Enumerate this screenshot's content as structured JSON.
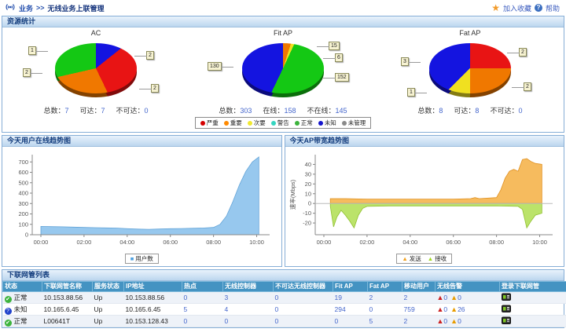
{
  "header": {
    "breadcrumb": {
      "section": "业务",
      "separator": ">>",
      "page": "无线业务上联管理"
    },
    "favorite_label": "加入收藏",
    "help_label": "帮助"
  },
  "resource_panel": {
    "title": "资源统计",
    "legend": [
      {
        "label": "严重",
        "color": "#d40000"
      },
      {
        "label": "重要",
        "color": "#ff8a00"
      },
      {
        "label": "次要",
        "color": "#f0e830"
      },
      {
        "label": "警告",
        "color": "#35d5c0"
      },
      {
        "label": "正常",
        "color": "#3cb33c"
      },
      {
        "label": "未知",
        "color": "#1414cc"
      },
      {
        "label": "未管理",
        "color": "#8a8a8a"
      }
    ]
  },
  "chart_data": [
    {
      "type": "pie",
      "title": "AC",
      "slices": [
        {
          "label": "1",
          "value": 1,
          "color": "#1414e0"
        },
        {
          "label": "2",
          "value": 2,
          "color": "#e81414"
        },
        {
          "label": "2",
          "value": 2,
          "color": "#f07800"
        },
        {
          "label": "2",
          "value": 2,
          "color": "#14c814"
        }
      ],
      "stats": [
        {
          "label": "总数",
          "value": "7"
        },
        {
          "label": "可达",
          "value": "7"
        },
        {
          "label": "不可达",
          "value": "0"
        }
      ]
    },
    {
      "type": "pie",
      "title": "Fit AP",
      "slices": [
        {
          "label": "15",
          "value": 15,
          "color": "#f07800"
        },
        {
          "label": "6",
          "value": 6,
          "color": "#f0e020"
        },
        {
          "label": "152",
          "value": 152,
          "color": "#14c814"
        },
        {
          "label": "130",
          "value": 130,
          "color": "#1414e0"
        }
      ],
      "stats": [
        {
          "label": "总数",
          "value": "303"
        },
        {
          "label": "在线",
          "value": "158"
        },
        {
          "label": "不在线",
          "value": "145"
        }
      ]
    },
    {
      "type": "pie",
      "title": "Fat AP",
      "slices": [
        {
          "label": "2",
          "value": 2,
          "color": "#e81414"
        },
        {
          "label": "2",
          "value": 2,
          "color": "#f07800"
        },
        {
          "label": "1",
          "value": 1,
          "color": "#f0e020"
        },
        {
          "label": "3",
          "value": 3,
          "color": "#1414e0"
        }
      ],
      "stats": [
        {
          "label": "总数",
          "value": "8"
        },
        {
          "label": "可达",
          "value": "8"
        },
        {
          "label": "不可达",
          "value": "0"
        }
      ]
    },
    {
      "type": "area",
      "title": "今天用户在线趋势图",
      "xlim": [
        -0.4,
        10.6
      ],
      "ylim": [
        0,
        770
      ],
      "yticks": [
        0,
        100,
        200,
        300,
        400,
        500,
        600,
        700
      ],
      "xticks": [
        {
          "v": 0,
          "label": "00:00"
        },
        {
          "v": 2,
          "label": "02:00"
        },
        {
          "v": 4,
          "label": "04:00"
        },
        {
          "v": 6,
          "label": "06:00"
        },
        {
          "v": 8,
          "label": "08:00"
        },
        {
          "v": 10,
          "label": "10:00"
        }
      ],
      "legend": [
        {
          "label": "用户数",
          "color": "#4da0e0",
          "marker": "■"
        }
      ],
      "series": [
        {
          "name": "用户数",
          "color": "#8cc2ec",
          "stroke": "#63a4d8",
          "x": [
            0,
            0.5,
            1,
            1.5,
            2,
            2.5,
            3,
            3.5,
            4,
            4.5,
            5,
            5.5,
            6,
            6.5,
            7,
            7.5,
            8,
            8.3,
            8.6,
            8.9,
            9.2,
            9.5,
            9.8,
            10.1
          ],
          "y": [
            80,
            78,
            76,
            73,
            70,
            68,
            66,
            64,
            58,
            54,
            52,
            55,
            58,
            60,
            62,
            64,
            70,
            100,
            180,
            320,
            480,
            610,
            700,
            748
          ]
        }
      ]
    },
    {
      "type": "area",
      "title": "今天AP带宽趋势图",
      "ylabel": "速率(Mbps)",
      "xlim": [
        -0.4,
        10.6
      ],
      "ylim": [
        -32,
        50
      ],
      "yticks": [
        -20,
        -10,
        0,
        10,
        20,
        30,
        40
      ],
      "xticks": [
        {
          "v": 0,
          "label": "00:00"
        },
        {
          "v": 2,
          "label": "02:00"
        },
        {
          "v": 4,
          "label": "04:00"
        },
        {
          "v": 6,
          "label": "06:00"
        },
        {
          "v": 8,
          "label": "08:00"
        },
        {
          "v": 10,
          "label": "10:00"
        }
      ],
      "legend": [
        {
          "label": "发送",
          "color": "#f0a01e",
          "marker": "▲"
        },
        {
          "label": "接收",
          "color": "#a0d820",
          "marker": "▲"
        }
      ],
      "series": [
        {
          "name": "发送",
          "color": "#f5b44c",
          "stroke": "#e09020",
          "x": [
            0.3,
            0.6,
            1,
            2,
            3,
            4,
            5,
            6,
            6.8,
            7,
            7.2,
            8,
            8.2,
            8.4,
            8.6,
            8.8,
            9,
            9.2,
            9.4,
            9.6,
            9.8,
            10.1
          ],
          "y": [
            5,
            5,
            5,
            4.5,
            4.5,
            4.5,
            4.5,
            4.5,
            5,
            6,
            5,
            6,
            14,
            26,
            33,
            35,
            33,
            45,
            46,
            43,
            41,
            40
          ]
        },
        {
          "name": "接收",
          "color": "#b4e05a",
          "stroke": "#90c030",
          "x": [
            0.3,
            0.45,
            0.6,
            0.8,
            1,
            1.2,
            1.4,
            1.6,
            1.8,
            2,
            3,
            4,
            5,
            6,
            7,
            8,
            9,
            9.2,
            9.4,
            9.6,
            9.8,
            10.1
          ],
          "y": [
            -3,
            -24,
            -14,
            -7,
            -12,
            -18,
            -25,
            -12,
            -5,
            -3,
            -2.5,
            -2.5,
            -2.5,
            -2.5,
            -2.5,
            -2.5,
            -3,
            -6,
            -25,
            -18,
            -12,
            -10
          ]
        }
      ]
    }
  ],
  "table": {
    "title": "下联网管列表",
    "columns": [
      "状态",
      "下联网管名称",
      "服务状态",
      "IP地址",
      "热点",
      "无线控制器",
      "不可达无线控制器",
      "Fit AP",
      "Fat AP",
      "移动用户",
      "无线告警",
      "登录下联网管"
    ],
    "rows": [
      {
        "status": "正常",
        "status_icon": "ok",
        "name": "10.153.88.56",
        "service": "Up",
        "ip": "10.153.88.56",
        "hotspot": "0",
        "controllers": "3",
        "unreachable": "0",
        "fit_ap": "19",
        "fat_ap": "2",
        "mobile_users": "2",
        "critical_alarms": "0",
        "major_alarms": "0"
      },
      {
        "status": "未知",
        "status_icon": "unknown",
        "name": "10.165.6.45",
        "service": "Up",
        "ip": "10.165.6.45",
        "hotspot": "5",
        "controllers": "4",
        "unreachable": "0",
        "fit_ap": "294",
        "fat_ap": "0",
        "mobile_users": "759",
        "critical_alarms": "0",
        "major_alarms": "26"
      },
      {
        "status": "正常",
        "status_icon": "ok",
        "name": "L00641T",
        "service": "Up",
        "ip": "10.153.128.43",
        "hotspot": "0",
        "controllers": "0",
        "unreachable": "0",
        "fit_ap": "0",
        "fat_ap": "5",
        "mobile_users": "2",
        "critical_alarms": "0",
        "major_alarms": "0"
      }
    ]
  }
}
